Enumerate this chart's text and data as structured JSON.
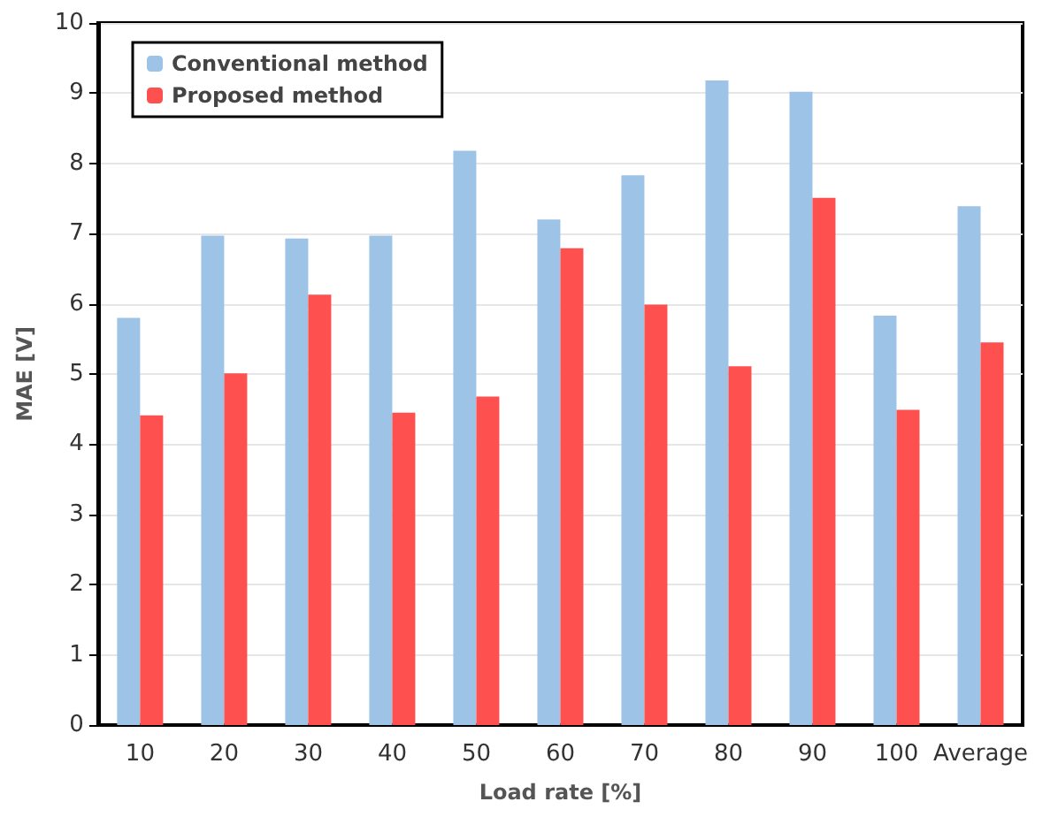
{
  "chart_data": {
    "type": "bar",
    "xlabel": "Load rate [%]",
    "ylabel": "MAE [V]",
    "categories": [
      "10",
      "20",
      "30",
      "40",
      "50",
      "60",
      "70",
      "80",
      "90",
      "100",
      "Average"
    ],
    "series": [
      {
        "name": "Conventional method",
        "color": "#9dc3e6",
        "values": [
          5.8,
          6.97,
          6.93,
          6.97,
          8.18,
          7.2,
          7.83,
          9.18,
          9.02,
          5.83,
          7.39
        ]
      },
      {
        "name": "Proposed method",
        "color": "#ff5050",
        "values": [
          4.41,
          5.01,
          6.13,
          4.45,
          4.68,
          6.79,
          5.99,
          5.11,
          7.51,
          4.49,
          5.45
        ]
      }
    ],
    "ylim": [
      0,
      10
    ],
    "yticks": [
      0,
      1,
      2,
      3,
      4,
      5,
      6,
      7,
      8,
      9,
      10
    ],
    "grid": "y",
    "legend": "top left"
  }
}
